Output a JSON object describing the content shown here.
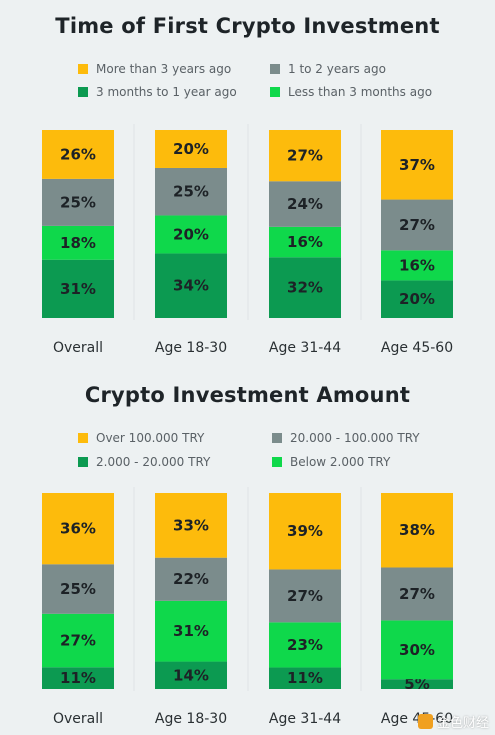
{
  "colors": {
    "yellow": "#fdbb0c",
    "gray": "#7b8c8c",
    "light_green": "#0fd84b",
    "dark_green": "#0c9a51",
    "background": "#edf1f2"
  },
  "chart_data": [
    {
      "type": "bar",
      "stacked": true,
      "title": "Time of First Crypto Investment",
      "legend_placement": "top",
      "categories": [
        "Overall",
        "Age 18-30",
        "Age 31-44",
        "Age 45-60"
      ],
      "series": [
        {
          "name": "3 months to 1 year ago",
          "color": "#0c9a51",
          "values": [
            31,
            34,
            32,
            20
          ],
          "labels": [
            "31%",
            "34%",
            "32%",
            "20%"
          ]
        },
        {
          "name": "Less than 3 months ago",
          "color": "#0fd84b",
          "values": [
            18,
            20,
            16,
            16
          ],
          "labels": [
            "18%",
            "20%",
            "16%",
            "16%"
          ]
        },
        {
          "name": "1 to 2 years ago",
          "color": "#7b8c8c",
          "values": [
            25,
            25,
            24,
            27
          ],
          "labels": [
            "25%",
            "25%",
            "24%",
            "27%"
          ]
        },
        {
          "name": "More than 3 years ago",
          "color": "#fdbb0c",
          "values": [
            26,
            20,
            27,
            37
          ],
          "labels": [
            "26%",
            "20%",
            "27%",
            "37%"
          ]
        }
      ],
      "legend_order": [
        "More than 3 years ago",
        "1 to 2 years ago",
        "3 months to 1 year ago",
        "Less than 3 months ago"
      ],
      "xlabel": "",
      "ylabel": "",
      "ylim": [
        0,
        100
      ],
      "grid": false
    },
    {
      "type": "bar",
      "stacked": true,
      "title": "Crypto Investment Amount",
      "legend_placement": "top",
      "categories": [
        "Overall",
        "Age 18-30",
        "Age 31-44",
        "Age 45-60"
      ],
      "series": [
        {
          "name": "2.000 - 20.000 TRY",
          "color": "#0c9a51",
          "values": [
            11,
            14,
            11,
            5
          ],
          "labels": [
            "11%",
            "14%",
            "11%",
            "5%"
          ]
        },
        {
          "name": "Below 2.000 TRY",
          "color": "#0fd84b",
          "values": [
            27,
            31,
            23,
            30
          ],
          "labels": [
            "27%",
            "31%",
            "23%",
            "30%"
          ]
        },
        {
          "name": "20.000 - 100.000 TRY",
          "color": "#7b8c8c",
          "values": [
            25,
            22,
            27,
            27
          ],
          "labels": [
            "25%",
            "22%",
            "27%",
            "27%"
          ]
        },
        {
          "name": "Over 100.000 TRY",
          "color": "#fdbb0c",
          "values": [
            36,
            33,
            39,
            38
          ],
          "labels": [
            "36%",
            "33%",
            "39%",
            "38%"
          ]
        }
      ],
      "legend_order": [
        "Over 100.000 TRY",
        "20.000 - 100.000 TRY",
        "2.000 - 20.000 TRY",
        "Below 2.000 TRY"
      ],
      "xlabel": "",
      "ylabel": "",
      "ylim": [
        0,
        100
      ],
      "grid": false
    }
  ],
  "watermark": {
    "text": "金色财经"
  }
}
